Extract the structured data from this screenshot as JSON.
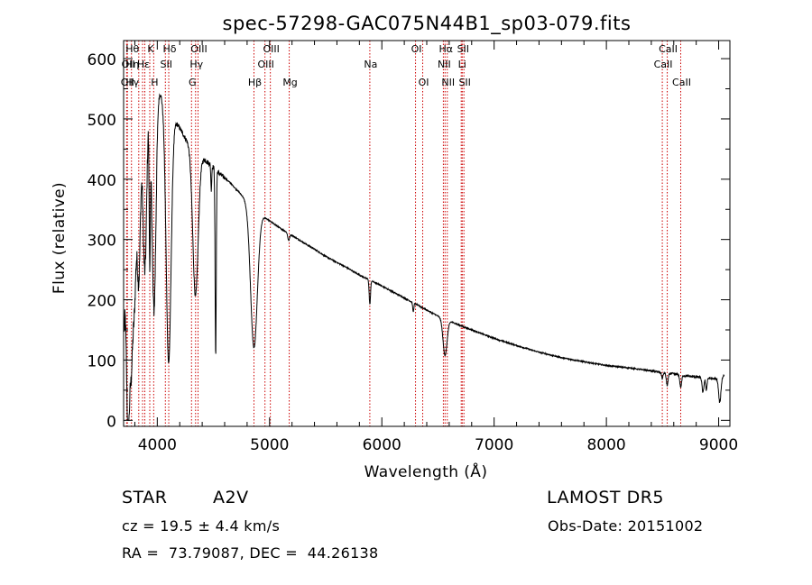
{
  "chart_data": {
    "type": "line",
    "title": "spec-57298-GAC075N44B1_sp03-079.fits",
    "xlabel": "Wavelength (Å)",
    "ylabel": "Flux (relative)",
    "xlim": [
      3700,
      9100
    ],
    "ylim": [
      -10,
      630
    ],
    "xticks": [
      4000,
      5000,
      6000,
      7000,
      8000,
      9000
    ],
    "yticks": [
      0,
      100,
      200,
      300,
      400,
      500,
      600
    ],
    "grid": false,
    "line_color": "#000000",
    "marker_color": "#cc0000",
    "continuum": [
      [
        3705,
        160
      ],
      [
        3730,
        420
      ],
      [
        3760,
        520
      ],
      [
        3800,
        560
      ],
      [
        3850,
        575
      ],
      [
        3900,
        580
      ],
      [
        3950,
        570
      ],
      [
        4000,
        555
      ],
      [
        4050,
        535
      ],
      [
        4100,
        515
      ],
      [
        4150,
        500
      ],
      [
        4200,
        485
      ],
      [
        4250,
        468
      ],
      [
        4300,
        455
      ],
      [
        4350,
        445
      ],
      [
        4400,
        436
      ],
      [
        4450,
        428
      ],
      [
        4500,
        420
      ],
      [
        4550,
        410
      ],
      [
        4600,
        402
      ],
      [
        4650,
        394
      ],
      [
        4700,
        384
      ],
      [
        4750,
        374
      ],
      [
        4800,
        364
      ],
      [
        4850,
        352
      ],
      [
        4900,
        345
      ],
      [
        5000,
        331
      ],
      [
        5100,
        318
      ],
      [
        5200,
        307
      ],
      [
        5300,
        295
      ],
      [
        5400,
        284
      ],
      [
        5500,
        272
      ],
      [
        5600,
        262
      ],
      [
        5700,
        252
      ],
      [
        5800,
        241
      ],
      [
        5900,
        232
      ],
      [
        6000,
        223
      ],
      [
        6100,
        213
      ],
      [
        6200,
        203
      ],
      [
        6300,
        193
      ],
      [
        6400,
        183
      ],
      [
        6500,
        173
      ],
      [
        6600,
        165
      ],
      [
        6700,
        157
      ],
      [
        6800,
        150
      ],
      [
        6900,
        143
      ],
      [
        7000,
        136
      ],
      [
        7200,
        124
      ],
      [
        7400,
        113
      ],
      [
        7600,
        104
      ],
      [
        7800,
        97
      ],
      [
        8000,
        91
      ],
      [
        8200,
        87
      ],
      [
        8400,
        82
      ],
      [
        8500,
        79
      ],
      [
        8600,
        77
      ],
      [
        8700,
        74
      ],
      [
        8800,
        72
      ],
      [
        8900,
        70
      ],
      [
        9000,
        68
      ],
      [
        9050,
        75
      ]
    ],
    "absorption_features": [
      [
        3734,
        12,
        300
      ],
      [
        3750,
        14,
        250
      ],
      [
        3771,
        14,
        320
      ],
      [
        3798,
        14,
        300
      ],
      [
        3835,
        16,
        330
      ],
      [
        3889,
        18,
        330
      ],
      [
        3933,
        6,
        250
      ],
      [
        3970,
        18,
        380
      ],
      [
        4101,
        22,
        420
      ],
      [
        4340,
        24,
        240
      ],
      [
        4481,
        4,
        40
      ],
      [
        4520,
        5,
        310
      ],
      [
        4861,
        30,
        230
      ],
      [
        5170,
        8,
        12
      ],
      [
        5893,
        6,
        40
      ],
      [
        6280,
        5,
        15
      ],
      [
        6563,
        18,
        60
      ],
      [
        8498,
        6,
        10
      ],
      [
        8542,
        8,
        20
      ],
      [
        8662,
        8,
        20
      ],
      [
        8860,
        8,
        25
      ],
      [
        8890,
        6,
        20
      ],
      [
        9010,
        10,
        40
      ]
    ],
    "line_markers": [
      {
        "x": 3727,
        "labels": [
          "OII"
        ],
        "rows": [
          3
        ]
      },
      {
        "x": 3734,
        "labels": [
          "OII"
        ],
        "rows": [
          2
        ]
      },
      {
        "x": 3770,
        "labels": [
          "Hθ",
          "Hη",
          "Hγ"
        ],
        "rows": [
          1,
          2,
          3
        ]
      },
      {
        "x": 3835,
        "labels": [
          "Hη"
        ],
        "rows": []
      },
      {
        "x": 3869,
        "labels": [
          "Hε"
        ],
        "rows": [
          2
        ]
      },
      {
        "x": 3889,
        "labels": [
          "Hζ"
        ],
        "rows": []
      },
      {
        "x": 3933,
        "labels": [
          "K"
        ],
        "rows": [
          1
        ]
      },
      {
        "x": 3968,
        "labels": [
          "H"
        ],
        "rows": [
          3
        ]
      },
      {
        "x": 4072,
        "labels": [
          "SII"
        ],
        "rows": [
          2
        ]
      },
      {
        "x": 4102,
        "labels": [
          "Hδ"
        ],
        "rows": [
          1
        ]
      },
      {
        "x": 4305,
        "labels": [
          "G"
        ],
        "rows": [
          3
        ]
      },
      {
        "x": 4341,
        "labels": [
          "Hγ"
        ],
        "rows": [
          2
        ]
      },
      {
        "x": 4363,
        "labels": [
          "OIII"
        ],
        "rows": [
          1
        ]
      },
      {
        "x": 4861,
        "labels": [
          "Hβ"
        ],
        "rows": [
          3
        ]
      },
      {
        "x": 4959,
        "labels": [
          "OIII"
        ],
        "rows": [
          2
        ]
      },
      {
        "x": 5007,
        "labels": [
          "OIII"
        ],
        "rows": [
          1
        ]
      },
      {
        "x": 5175,
        "labels": [
          "Mg"
        ],
        "rows": [
          3
        ]
      },
      {
        "x": 5893,
        "labels": [
          "Na"
        ],
        "rows": [
          2
        ]
      },
      {
        "x": 6300,
        "labels": [
          "OI"
        ],
        "rows": [
          1
        ]
      },
      {
        "x": 6364,
        "labels": [
          "OI"
        ],
        "rows": [
          3
        ]
      },
      {
        "x": 6548,
        "labels": [
          "NII"
        ],
        "rows": [
          2
        ]
      },
      {
        "x": 6563,
        "labels": [
          "Hα"
        ],
        "rows": [
          1
        ]
      },
      {
        "x": 6583,
        "labels": [
          "NII"
        ],
        "rows": [
          3
        ]
      },
      {
        "x": 6707,
        "labels": [
          "Li"
        ],
        "rows": [
          2
        ]
      },
      {
        "x": 6716,
        "labels": [
          "SII"
        ],
        "rows": [
          1
        ]
      },
      {
        "x": 6731,
        "labels": [
          "SII"
        ],
        "rows": [
          3
        ]
      },
      {
        "x": 8498,
        "labels": [
          "CaII"
        ],
        "rows": [
          2
        ]
      },
      {
        "x": 8542,
        "labels": [
          "CaII"
        ],
        "rows": [
          1
        ]
      },
      {
        "x": 8662,
        "labels": [
          "CaII"
        ],
        "rows": [
          3
        ]
      }
    ]
  },
  "info": {
    "class_label": "STAR",
    "subclass": "A2V",
    "survey": "LAMOST DR5",
    "redshift": "cz = 19.5 ± 4.4 km/s",
    "obs_date": "Obs-Date: 20151002",
    "coords": "RA =  73.79087, DEC =  44.26138"
  }
}
